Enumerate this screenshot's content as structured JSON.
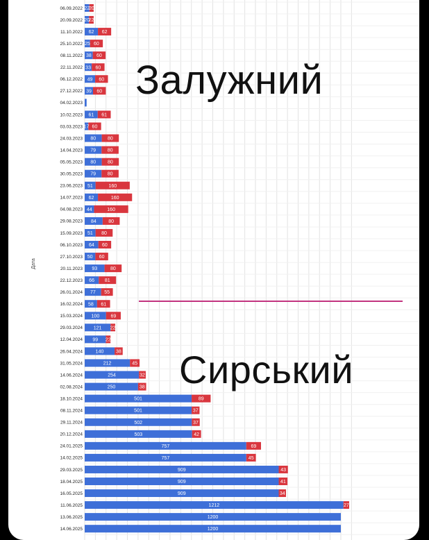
{
  "overlays": {
    "top_label": "Залужний",
    "bottom_label": "Сирський"
  },
  "colors": {
    "series_a": "#3e6fd8",
    "series_b": "#d9363e",
    "divider": "#c2337f",
    "grid": "#e2e2e2"
  },
  "chart_data": {
    "type": "bar",
    "orientation": "horizontal",
    "stacked": true,
    "ylabel": "Дата",
    "xlabel": "",
    "xlim": [
      0,
      1250
    ],
    "grid": true,
    "categories": [
      "06.09.2022",
      "20.09.2022",
      "11.10.2022",
      "25.10.2022",
      "08.11.2022",
      "22.11.2022",
      "06.12.2022",
      "27.12.2022",
      "04.02.2023",
      "10.02.2023",
      "03.03.2023",
      "24.03.2023",
      "14.04.2023",
      "05.05.2023",
      "30.05.2023",
      "23.06.2023",
      "14.07.2023",
      "04.08.2023",
      "29.08.2023",
      "15.09.2023",
      "06.10.2023",
      "27.10.2023",
      "20.11.2023",
      "22.12.2023",
      "26.01.2024",
      "16.02.2024",
      "15.03.2024",
      "29.03.2024",
      "12.04.2024",
      "26.04.2024",
      "31.05.2024",
      "14.06.2024",
      "02.08.2024",
      "18.10.2024",
      "08.11.2024",
      "29.11.2024",
      "20.12.2024",
      "24.01.2025",
      "14.02.2025",
      "29.03.2025",
      "18.04.2025",
      "16.05.2025",
      "11.06.2025",
      "13.06.2025",
      "14.06.2025"
    ],
    "series": [
      {
        "values": [
          22,
          20,
          62,
          25,
          38,
          33,
          49,
          39,
          9,
          61,
          17,
          80,
          79,
          80,
          79,
          51,
          62,
          44,
          84,
          51,
          64,
          50,
          93,
          66,
          77,
          58,
          100,
          121,
          99,
          140,
          212,
          254,
          250,
          501,
          501,
          502,
          503,
          757,
          757,
          909,
          909,
          909,
          1212,
          1200,
          1200
        ]
      },
      {
        "values": [
          20,
          22,
          62,
          60,
          60,
          60,
          60,
          60,
          0,
          61,
          60,
          80,
          80,
          80,
          80,
          160,
          160,
          160,
          80,
          80,
          60,
          60,
          80,
          81,
          55,
          61,
          69,
          22,
          22,
          38,
          45,
          32,
          38,
          89,
          37,
          37,
          42,
          69,
          45,
          43,
          41,
          34,
          27,
          0,
          0
        ]
      }
    ],
    "data_labels_a": [
      "22",
      "20",
      "62",
      "25",
      "38",
      "33",
      "49",
      "39",
      "",
      "61",
      "17",
      "80",
      "79",
      "80",
      "79",
      "51",
      "62",
      "44",
      "84",
      "51",
      "64",
      "50",
      "93",
      "66",
      "77",
      "58",
      "100",
      "121",
      "99",
      "140",
      "212",
      "254",
      "250",
      "501",
      "501",
      "502",
      "503",
      "757",
      "757",
      "909",
      "909",
      "909",
      "1212",
      "1200",
      "1200"
    ],
    "data_labels_b": [
      "20",
      "22",
      "62",
      "60",
      "60",
      "60",
      "60",
      "60",
      "",
      "61",
      "60",
      "80",
      "80",
      "80",
      "80",
      "160",
      "160",
      "160",
      "80",
      "80",
      "60",
      "60",
      "80",
      "81",
      "55",
      "61",
      "69",
      "22",
      "22",
      "38",
      "45",
      "32",
      "38",
      "89",
      "37",
      "37",
      "42",
      "69",
      "45",
      "43",
      "41",
      "34",
      "27",
      "",
      ""
    ]
  }
}
